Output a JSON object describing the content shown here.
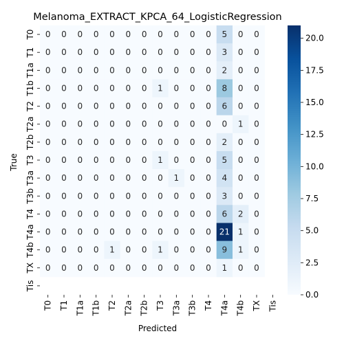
{
  "chart_data": {
    "type": "heatmap",
    "title": "Melanoma_EXTRACT_KPCA_64_LogisticRegression",
    "xlabel": "Predicted",
    "ylabel": "True",
    "x_categories": [
      "T0",
      "T1",
      "T1a",
      "T1b",
      "T2",
      "T2a",
      "T2b",
      "T3",
      "T3a",
      "T3b",
      "T4",
      "T4a",
      "T4b",
      "TX",
      "Tis"
    ],
    "y_categories": [
      "T0",
      "T1",
      "T1a",
      "T1b",
      "T2",
      "T2a",
      "T2b",
      "T3",
      "T3a",
      "T3b",
      "T4",
      "T4a",
      "T4b",
      "TX",
      "Tis"
    ],
    "values": [
      [
        0,
        0,
        0,
        0,
        0,
        0,
        0,
        0,
        0,
        0,
        0,
        5,
        0,
        0,
        null
      ],
      [
        0,
        0,
        0,
        0,
        0,
        0,
        0,
        0,
        0,
        0,
        0,
        3,
        0,
        0,
        null
      ],
      [
        0,
        0,
        0,
        0,
        0,
        0,
        0,
        0,
        0,
        0,
        0,
        2,
        0,
        0,
        null
      ],
      [
        0,
        0,
        0,
        0,
        0,
        0,
        0,
        1,
        0,
        0,
        0,
        8,
        0,
        0,
        null
      ],
      [
        0,
        0,
        0,
        0,
        0,
        0,
        0,
        0,
        0,
        0,
        0,
        6,
        0,
        0,
        null
      ],
      [
        0,
        0,
        0,
        0,
        0,
        0,
        0,
        0,
        0,
        0,
        0,
        0,
        1,
        0,
        null
      ],
      [
        0,
        0,
        0,
        0,
        0,
        0,
        0,
        0,
        0,
        0,
        0,
        2,
        0,
        0,
        null
      ],
      [
        0,
        0,
        0,
        0,
        0,
        0,
        0,
        1,
        0,
        0,
        0,
        5,
        0,
        0,
        null
      ],
      [
        0,
        0,
        0,
        0,
        0,
        0,
        0,
        0,
        1,
        0,
        0,
        4,
        0,
        0,
        null
      ],
      [
        0,
        0,
        0,
        0,
        0,
        0,
        0,
        0,
        0,
        0,
        0,
        3,
        0,
        0,
        null
      ],
      [
        0,
        0,
        0,
        0,
        0,
        0,
        0,
        0,
        0,
        0,
        0,
        6,
        2,
        0,
        null
      ],
      [
        0,
        0,
        0,
        0,
        0,
        0,
        0,
        0,
        0,
        0,
        0,
        21,
        1,
        0,
        null
      ],
      [
        0,
        0,
        0,
        0,
        1,
        0,
        0,
        1,
        0,
        0,
        0,
        9,
        1,
        0,
        null
      ],
      [
        0,
        0,
        0,
        0,
        0,
        0,
        0,
        0,
        0,
        0,
        0,
        1,
        0,
        0,
        null
      ],
      [
        null,
        null,
        null,
        null,
        null,
        null,
        null,
        null,
        null,
        null,
        null,
        null,
        null,
        null,
        null
      ]
    ],
    "colorbar": {
      "colormap": "Blues",
      "range": [
        0,
        21
      ],
      "ticks": [
        0.0,
        2.5,
        5.0,
        7.5,
        10.0,
        12.5,
        15.0,
        17.5,
        20.0
      ],
      "tick_labels": [
        "0.0",
        "2.5",
        "5.0",
        "7.5",
        "10.0",
        "12.5",
        "15.0",
        "17.5",
        "20.0"
      ]
    }
  }
}
